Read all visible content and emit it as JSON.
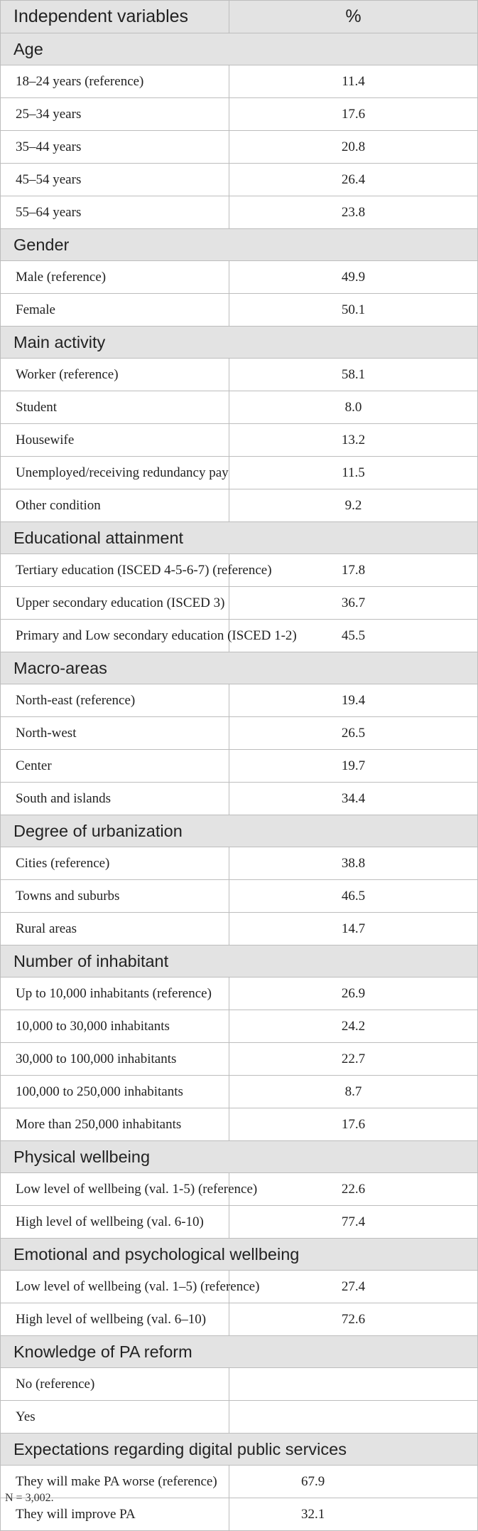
{
  "header": {
    "label": "Independent variables",
    "value": "%"
  },
  "sections": [
    {
      "title": "Age",
      "rows": [
        {
          "label": "18–24 years (reference)",
          "value": "11.4"
        },
        {
          "label": "25–34 years",
          "value": "17.6"
        },
        {
          "label": "35–44 years",
          "value": "20.8"
        },
        {
          "label": "45–54 years",
          "value": "26.4"
        },
        {
          "label": "55–64 years",
          "value": "23.8"
        }
      ]
    },
    {
      "title": "Gender",
      "rows": [
        {
          "label": "Male (reference)",
          "value": "49.9"
        },
        {
          "label": "Female",
          "value": "50.1"
        }
      ]
    },
    {
      "title": "Main activity",
      "rows": [
        {
          "label": "Worker (reference)",
          "value": "58.1"
        },
        {
          "label": "Student",
          "value": "8.0"
        },
        {
          "label": "Housewife",
          "value": "13.2"
        },
        {
          "label": "Unemployed/receiving redundancy pay",
          "value": "11.5"
        },
        {
          "label": "Other condition",
          "value": "9.2"
        }
      ]
    },
    {
      "title": "Educational attainment",
      "rows": [
        {
          "label": "Tertiary education (ISCED 4-5-6-7) (reference)",
          "value": "17.8"
        },
        {
          "label": "Upper secondary education (ISCED 3)",
          "value": "36.7"
        },
        {
          "label": "Primary and Low secondary education (ISCED 1-2)",
          "value": "45.5"
        }
      ]
    },
    {
      "title": "Macro-areas",
      "rows": [
        {
          "label": "North-east (reference)",
          "value": "19.4"
        },
        {
          "label": "North-west",
          "value": "26.5"
        },
        {
          "label": "Center",
          "value": "19.7"
        },
        {
          "label": "South and islands",
          "value": "34.4"
        }
      ]
    },
    {
      "title": "Degree of urbanization",
      "rows": [
        {
          "label": "Cities (reference)",
          "value": "38.8"
        },
        {
          "label": "Towns and suburbs",
          "value": "46.5"
        },
        {
          "label": "Rural areas",
          "value": "14.7"
        }
      ]
    },
    {
      "title": "Number of inhabitant",
      "rows": [
        {
          "label": "Up to 10,000 inhabitants (reference)",
          "value": "26.9"
        },
        {
          "label": "10,000 to 30,000 inhabitants",
          "value": "24.2"
        },
        {
          "label": "30,000 to 100,000 inhabitants",
          "value": "22.7"
        },
        {
          "label": "100,000 to 250,000 inhabitants",
          "value": "8.7"
        },
        {
          "label": "More than 250,000 inhabitants",
          "value": "17.6"
        }
      ]
    },
    {
      "title": "Physical wellbeing",
      "rows": [
        {
          "label": "Low level of wellbeing (val. 1-5) (reference)",
          "value": "22.6"
        },
        {
          "label": "High level of wellbeing (val. 6-10)",
          "value": "77.4"
        }
      ]
    },
    {
      "title": "Emotional and psychological wellbeing",
      "rows": [
        {
          "label": "Low level of wellbeing (val. 1–5) (reference)",
          "value": "27.4"
        },
        {
          "label": "High level of wellbeing (val. 6–10)",
          "value": "72.6"
        }
      ]
    },
    {
      "title": "Knowledge of PA reform",
      "rows": [
        {
          "label": "No (reference)",
          "value": ""
        },
        {
          "label": "Yes",
          "value": ""
        }
      ]
    },
    {
      "title": "Expectations regarding digital public services",
      "rows": [
        {
          "label": "They will make PA worse (reference)",
          "value": "67.9"
        },
        {
          "label": "They will improve PA",
          "value": "32.1"
        }
      ]
    }
  ],
  "footnote": "N = 3,002."
}
